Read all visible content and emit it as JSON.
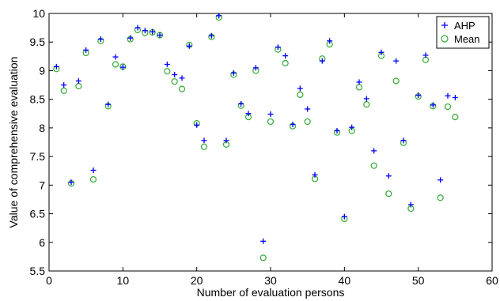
{
  "chart_data": {
    "type": "scatter",
    "title": "",
    "xlabel": "Number of evaluation persons",
    "ylabel": "Value of comprehensive evaluation",
    "xlim": [
      0,
      60
    ],
    "ylim": [
      5.5,
      10
    ],
    "xticks": [
      0,
      10,
      20,
      30,
      40,
      50,
      60
    ],
    "yticks": [
      5.5,
      6,
      6.5,
      7,
      7.5,
      8,
      8.5,
      9,
      9.5,
      10
    ],
    "grid": false,
    "legend_position": "top-right",
    "series": [
      {
        "name": "AHP",
        "marker": "plus",
        "color": "#0000ff",
        "x": [
          1,
          2,
          3,
          4,
          5,
          6,
          7,
          8,
          9,
          10,
          11,
          12,
          13,
          14,
          15,
          16,
          17,
          18,
          19,
          20,
          21,
          22,
          23,
          24,
          25,
          26,
          27,
          28,
          29,
          30,
          31,
          32,
          33,
          34,
          35,
          36,
          37,
          38,
          39,
          40,
          41,
          42,
          43,
          44,
          45,
          46,
          47,
          48,
          49,
          50,
          51,
          52,
          53,
          54,
          55
        ],
        "y": [
          9.07,
          8.75,
          7.05,
          8.82,
          9.36,
          7.26,
          9.55,
          8.41,
          9.24,
          9.06,
          9.57,
          9.75,
          9.7,
          9.68,
          9.62,
          9.11,
          8.93,
          8.87,
          9.43,
          8.05,
          7.78,
          9.61,
          9.96,
          7.78,
          8.96,
          8.42,
          8.25,
          9.05,
          6.02,
          8.24,
          9.41,
          9.26,
          8.06,
          8.69,
          8.33,
          7.18,
          9.17,
          9.52,
          7.95,
          6.45,
          8.01,
          8.8,
          8.51,
          7.6,
          9.32,
          7.16,
          9.17,
          7.78,
          6.66,
          8.57,
          9.27,
          8.4,
          7.09,
          8.56,
          8.53
        ]
      },
      {
        "name": "Mean",
        "marker": "circle",
        "color": "#33aa33",
        "x": [
          1,
          2,
          3,
          4,
          5,
          6,
          7,
          8,
          9,
          10,
          11,
          12,
          13,
          14,
          15,
          16,
          17,
          18,
          19,
          20,
          21,
          22,
          23,
          24,
          25,
          26,
          27,
          28,
          29,
          30,
          31,
          32,
          33,
          34,
          35,
          36,
          37,
          38,
          39,
          40,
          41,
          42,
          43,
          44,
          45,
          46,
          47,
          48,
          49,
          50,
          51,
          52,
          53,
          54,
          55
        ],
        "y": [
          9.03,
          8.65,
          7.03,
          8.73,
          9.31,
          7.1,
          9.52,
          8.38,
          9.11,
          9.07,
          9.55,
          9.71,
          9.66,
          9.67,
          9.62,
          8.99,
          8.81,
          8.68,
          9.45,
          8.08,
          7.67,
          9.59,
          9.93,
          7.71,
          8.93,
          8.39,
          8.19,
          9.0,
          5.73,
          8.11,
          9.37,
          9.13,
          8.03,
          8.58,
          8.11,
          7.11,
          9.21,
          9.46,
          7.92,
          6.41,
          7.95,
          8.71,
          8.41,
          7.34,
          9.26,
          6.85,
          8.82,
          7.74,
          6.59,
          8.55,
          9.19,
          8.38,
          6.78,
          8.37,
          8.19
        ]
      }
    ]
  }
}
